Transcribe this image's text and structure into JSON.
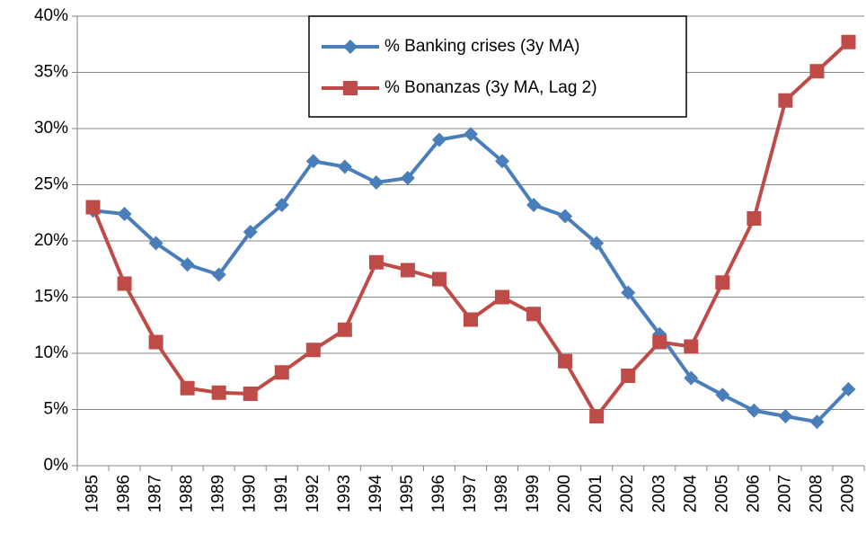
{
  "chart_data": {
    "type": "line",
    "categories": [
      "1985",
      "1986",
      "1987",
      "1988",
      "1989",
      "1990",
      "1991",
      "1992",
      "1993",
      "1994",
      "1995",
      "1996",
      "1997",
      "1998",
      "1999",
      "2000",
      "2001",
      "2002",
      "2003",
      "2004",
      "2005",
      "2006",
      "2007",
      "2008",
      "2009"
    ],
    "series": [
      {
        "name": "% Banking crises (3y MA)",
        "color": "#4a7ebb",
        "marker": "diamond",
        "values": [
          22.7,
          22.4,
          19.8,
          17.9,
          17.0,
          20.8,
          23.2,
          27.1,
          26.6,
          25.2,
          25.6,
          29.0,
          29.5,
          27.1,
          23.2,
          22.2,
          19.8,
          15.4,
          11.7,
          7.8,
          6.3,
          4.9,
          4.4,
          3.9,
          6.8
        ]
      },
      {
        "name": "% Bonanzas (3y MA, Lag 2)",
        "color": "#be4b48",
        "marker": "square",
        "values": [
          23.0,
          16.2,
          11.0,
          6.9,
          6.5,
          6.4,
          8.3,
          10.3,
          12.1,
          18.1,
          17.4,
          16.6,
          13.0,
          15.0,
          13.5,
          9.3,
          4.4,
          8.0,
          11.0,
          10.6,
          16.3,
          22.0,
          32.5,
          35.1,
          37.7
        ]
      }
    ],
    "ylim": [
      0,
      40
    ],
    "yticks": [
      {
        "value": 0,
        "label": "0%"
      },
      {
        "value": 5,
        "label": "5%"
      },
      {
        "value": 10,
        "label": "10%"
      },
      {
        "value": 15,
        "label": "15%"
      },
      {
        "value": 20,
        "label": "20%"
      },
      {
        "value": 25,
        "label": "25%"
      },
      {
        "value": 30,
        "label": "30%"
      },
      {
        "value": 35,
        "label": "35%"
      },
      {
        "value": 40,
        "label": "40%"
      }
    ],
    "grid": true,
    "legend": "top"
  }
}
